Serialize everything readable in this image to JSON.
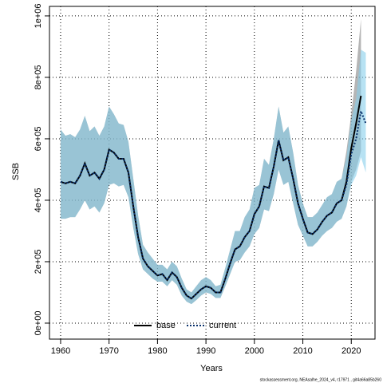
{
  "chart_data": {
    "type": "line",
    "xlabel": "Years",
    "ylabel": "SSB",
    "footnote": "stockassessment.org, NEAsalhe_2024_v4, r17971 , git4a66a85b260",
    "x": [
      1960,
      1961,
      1962,
      1963,
      1964,
      1965,
      1966,
      1967,
      1968,
      1969,
      1970,
      1971,
      1972,
      1973,
      1974,
      1975,
      1976,
      1977,
      1978,
      1979,
      1980,
      1981,
      1982,
      1983,
      1984,
      1985,
      1986,
      1987,
      1988,
      1989,
      1990,
      1991,
      1992,
      1993,
      1994,
      1995,
      1996,
      1997,
      1998,
      1999,
      2000,
      2001,
      2002,
      2003,
      2004,
      2005,
      2006,
      2007,
      2008,
      2009,
      2010,
      2011,
      2012,
      2013,
      2014,
      2015,
      2016,
      2017,
      2018,
      2019,
      2020,
      2021,
      2022,
      2023
    ],
    "series": [
      {
        "name": "base",
        "color": "#000000",
        "dash": "solid",
        "band_color": "rgba(120,120,120,0.55)",
        "values": [
          460000,
          455000,
          460000,
          455000,
          480000,
          520000,
          480000,
          490000,
          470000,
          500000,
          565000,
          555000,
          535000,
          535000,
          490000,
          380000,
          280000,
          210000,
          185000,
          170000,
          155000,
          160000,
          140000,
          165000,
          150000,
          115000,
          90000,
          80000,
          95000,
          110000,
          120000,
          115000,
          100000,
          100000,
          145000,
          195000,
          240000,
          250000,
          280000,
          300000,
          355000,
          380000,
          445000,
          440000,
          510000,
          595000,
          530000,
          540000,
          470000,
          390000,
          340000,
          295000,
          290000,
          305000,
          330000,
          350000,
          360000,
          390000,
          400000,
          460000,
          570000,
          650000,
          740000,
          null
        ],
        "upper": [
          630000,
          610000,
          615000,
          605000,
          630000,
          675000,
          625000,
          640000,
          610000,
          640000,
          705000,
          680000,
          650000,
          645000,
          590000,
          470000,
          350000,
          255000,
          230000,
          210000,
          190000,
          190000,
          175000,
          200000,
          185000,
          145000,
          110000,
          100000,
          120000,
          140000,
          150000,
          140000,
          120000,
          125000,
          180000,
          240000,
          300000,
          300000,
          345000,
          370000,
          440000,
          450000,
          535000,
          515000,
          600000,
          705000,
          620000,
          640000,
          555000,
          450000,
          390000,
          345000,
          345000,
          360000,
          385000,
          410000,
          420000,
          460000,
          470000,
          560000,
          680000,
          820000,
          990000,
          null
        ],
        "lower": [
          340000,
          340000,
          345000,
          345000,
          370000,
          400000,
          370000,
          380000,
          360000,
          390000,
          450000,
          455000,
          445000,
          450000,
          410000,
          310000,
          225000,
          175000,
          160000,
          145000,
          135000,
          135000,
          120000,
          140000,
          125000,
          90000,
          70000,
          62000,
          75000,
          90000,
          100000,
          95000,
          82000,
          82000,
          120000,
          160000,
          200000,
          205000,
          230000,
          250000,
          290000,
          310000,
          370000,
          365000,
          420000,
          500000,
          450000,
          460000,
          390000,
          320000,
          285000,
          250000,
          250000,
          265000,
          285000,
          300000,
          310000,
          330000,
          340000,
          380000,
          460000,
          500000,
          560000,
          null
        ]
      },
      {
        "name": "current",
        "color": "#08306b",
        "dash": "dotted",
        "band_color": "rgba(135,206,235,0.6)",
        "values": [
          460000,
          455000,
          460000,
          455000,
          480000,
          520000,
          480000,
          490000,
          470000,
          500000,
          565000,
          555000,
          535000,
          535000,
          490000,
          380000,
          280000,
          210000,
          185000,
          170000,
          155000,
          160000,
          140000,
          165000,
          150000,
          115000,
          90000,
          80000,
          95000,
          110000,
          120000,
          115000,
          100000,
          100000,
          145000,
          195000,
          240000,
          250000,
          280000,
          300000,
          355000,
          380000,
          445000,
          440000,
          510000,
          595000,
          530000,
          540000,
          470000,
          390000,
          340000,
          295000,
          290000,
          305000,
          330000,
          350000,
          360000,
          390000,
          400000,
          450000,
          550000,
          600000,
          690000,
          650000
        ],
        "upper": [
          630000,
          610000,
          615000,
          605000,
          630000,
          675000,
          625000,
          640000,
          610000,
          640000,
          705000,
          680000,
          650000,
          645000,
          590000,
          470000,
          350000,
          255000,
          230000,
          210000,
          190000,
          190000,
          175000,
          200000,
          185000,
          145000,
          110000,
          100000,
          120000,
          140000,
          150000,
          140000,
          120000,
          125000,
          180000,
          240000,
          300000,
          300000,
          345000,
          370000,
          440000,
          450000,
          535000,
          515000,
          600000,
          705000,
          620000,
          640000,
          555000,
          450000,
          390000,
          345000,
          345000,
          360000,
          385000,
          410000,
          420000,
          460000,
          470000,
          540000,
          660000,
          730000,
          890000,
          880000
        ],
        "lower": [
          340000,
          340000,
          345000,
          345000,
          370000,
          400000,
          370000,
          380000,
          360000,
          390000,
          450000,
          455000,
          445000,
          450000,
          410000,
          310000,
          225000,
          175000,
          160000,
          145000,
          135000,
          135000,
          120000,
          140000,
          125000,
          90000,
          70000,
          62000,
          75000,
          90000,
          100000,
          95000,
          82000,
          82000,
          120000,
          160000,
          200000,
          205000,
          230000,
          250000,
          290000,
          310000,
          370000,
          365000,
          420000,
          500000,
          450000,
          460000,
          390000,
          320000,
          285000,
          250000,
          250000,
          265000,
          285000,
          300000,
          310000,
          330000,
          340000,
          380000,
          450000,
          480000,
          540000,
          490000
        ]
      }
    ],
    "xlim": [
      1957.7,
      2024.9
    ],
    "xticks": [
      1960,
      1970,
      1980,
      1990,
      2000,
      2010,
      2020
    ],
    "ylim": [
      -52000,
      1031000
    ],
    "yticks": [
      {
        "value": 0,
        "label": "0e+00"
      },
      {
        "value": 200000,
        "label": "2e+05"
      },
      {
        "value": 400000,
        "label": "4e+05"
      },
      {
        "value": 600000,
        "label": "6e+05"
      },
      {
        "value": 800000,
        "label": "8e+05"
      },
      {
        "value": 1000000,
        "label": "1e+06"
      }
    ],
    "grid": true,
    "legend": "bottom"
  }
}
